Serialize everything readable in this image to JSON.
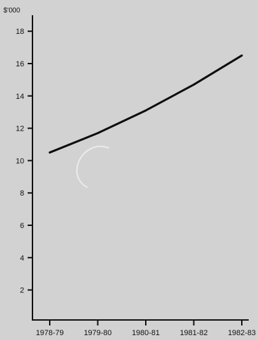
{
  "chart_data": {
    "type": "line",
    "unit_label": "$'000",
    "categories": [
      "1978-79",
      "1979-80",
      "1980-81",
      "1981-82",
      "1982-83"
    ],
    "series": [
      {
        "values": [
          10.5,
          11.7,
          13.1,
          14.7,
          16.5
        ],
        "color": "#0d0d0d"
      }
    ],
    "ylim": [
      0,
      19
    ],
    "yticks": [
      2,
      4,
      6,
      8,
      10,
      12,
      14,
      16,
      18
    ],
    "grid": false,
    "legend": "none"
  }
}
